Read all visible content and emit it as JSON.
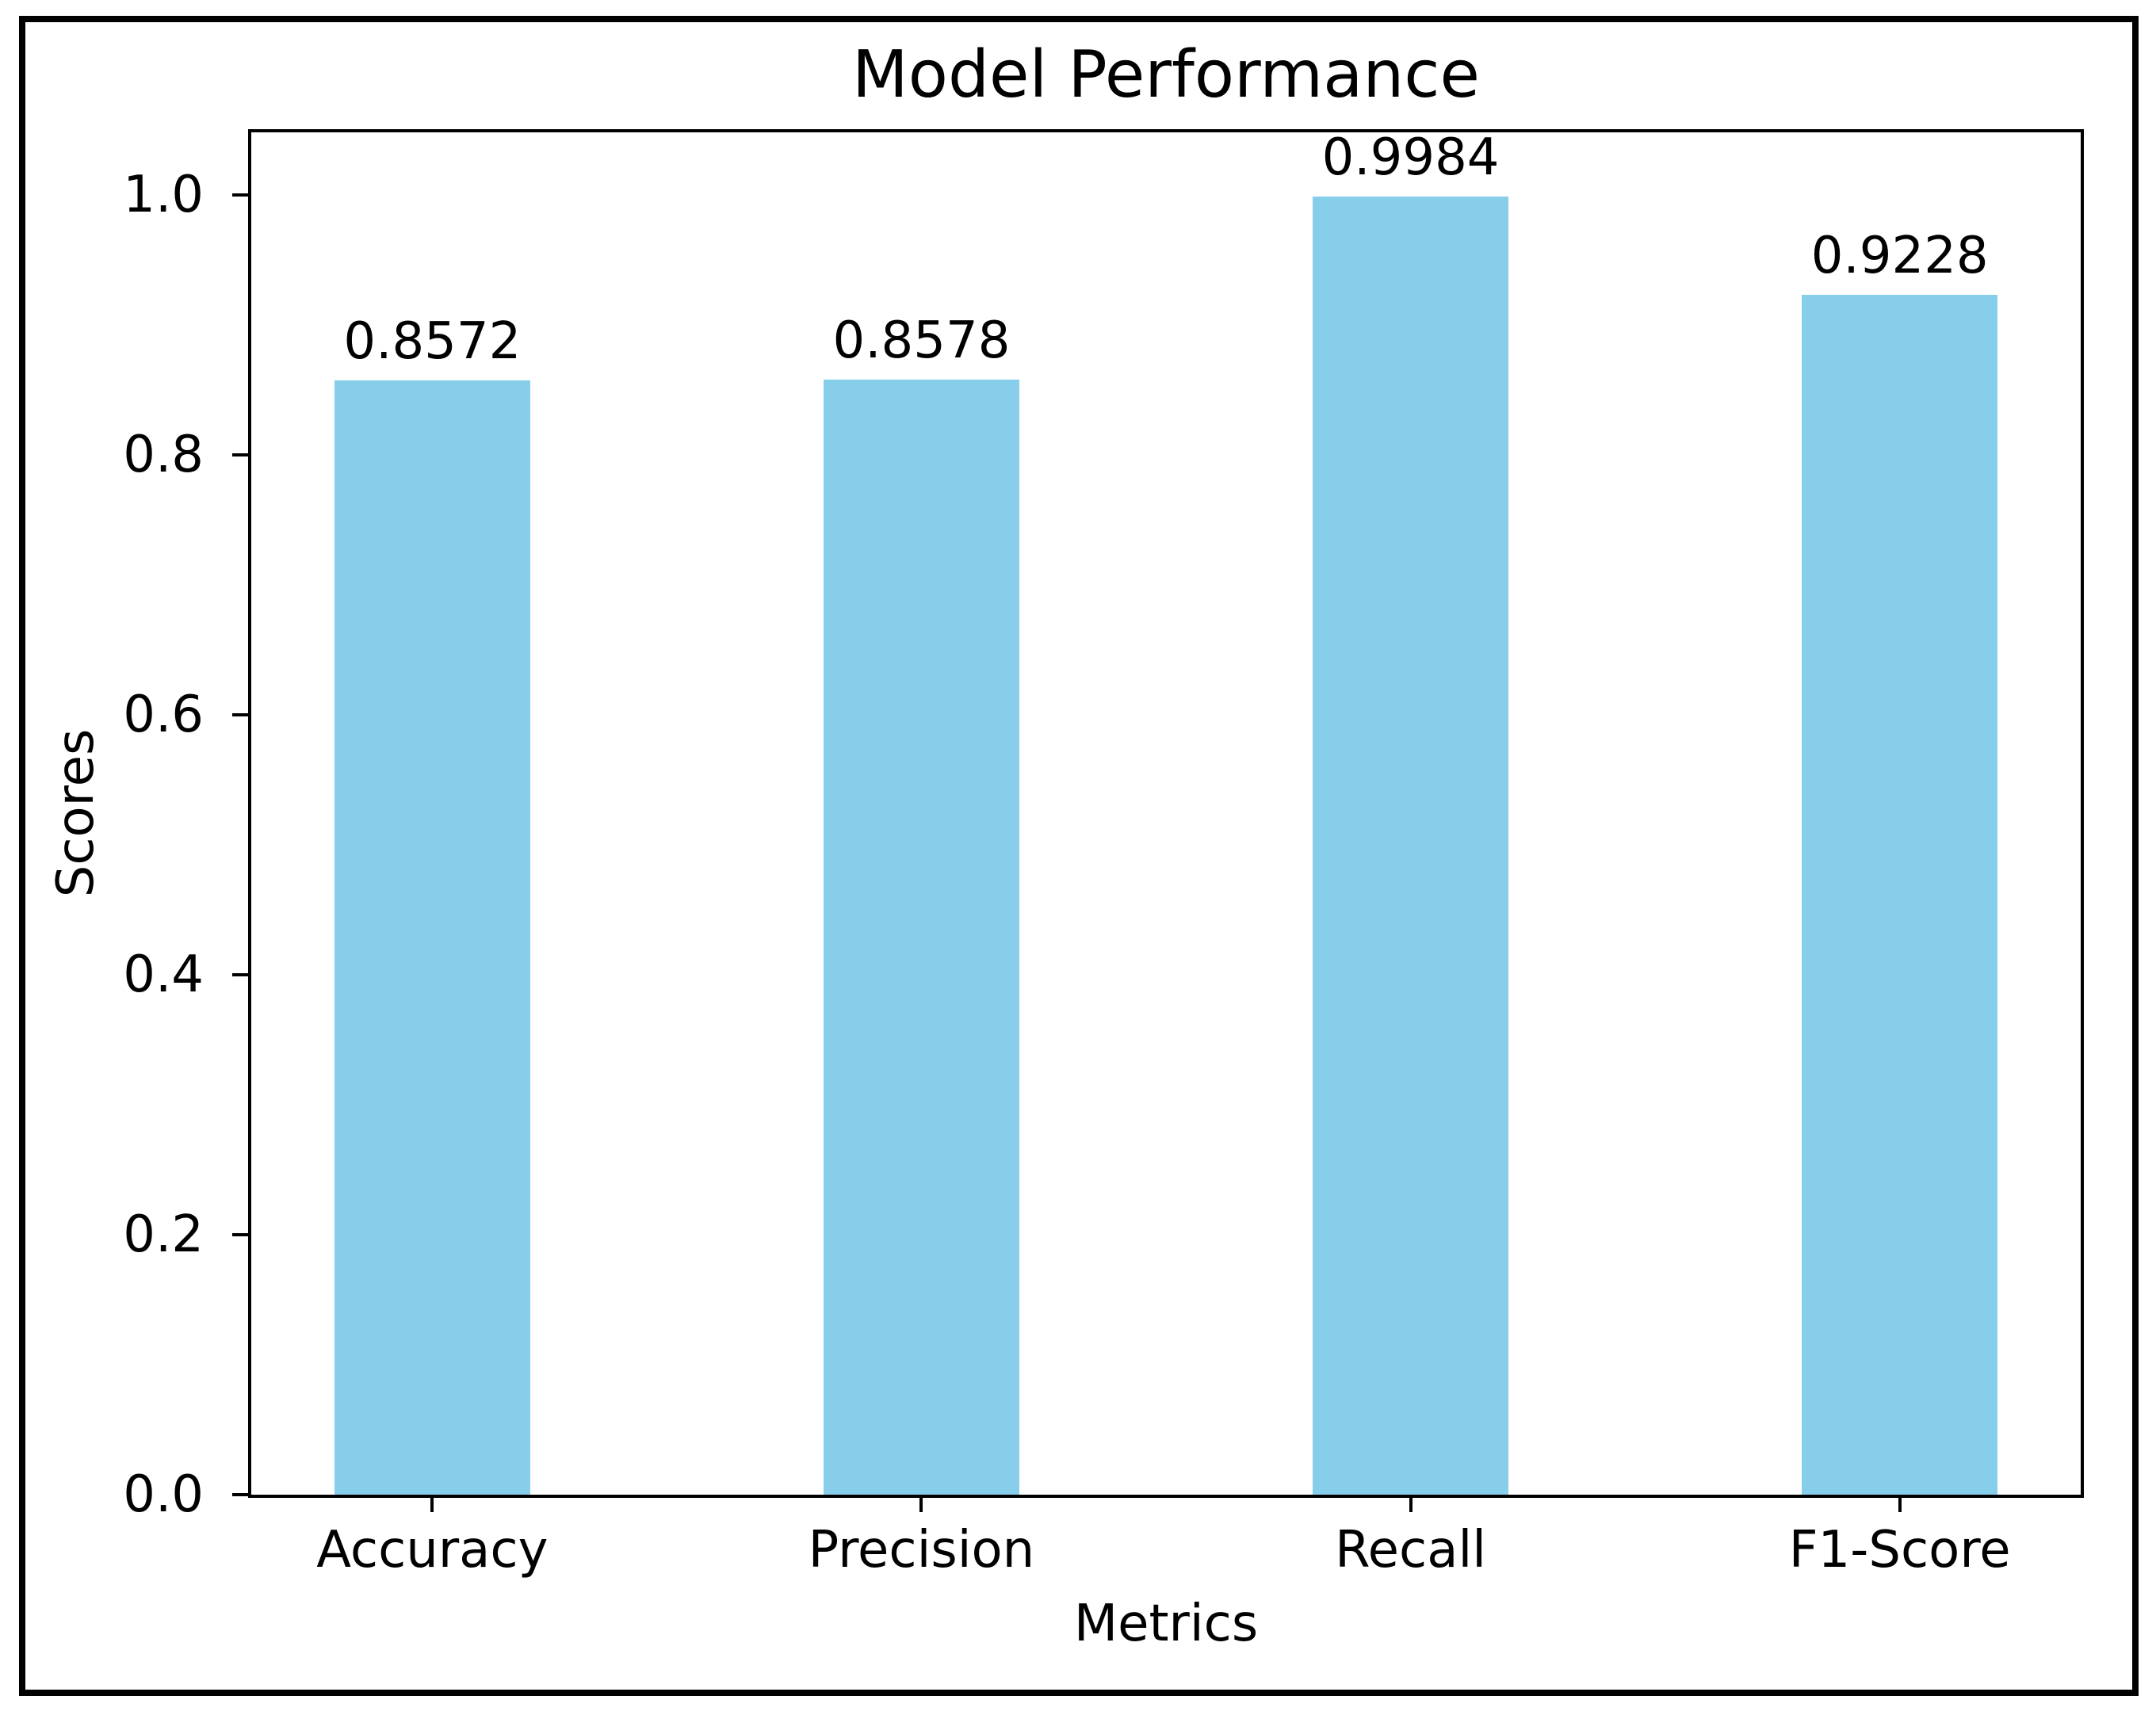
{
  "chart_data": {
    "type": "bar",
    "title": "Model Performance",
    "xlabel": "Metrics",
    "ylabel": "Scores",
    "categories": [
      "Accuracy",
      "Precision",
      "Recall",
      "F1-Score"
    ],
    "values": [
      0.8572,
      0.8578,
      0.9984,
      0.9228
    ],
    "value_labels": [
      "0.8572",
      "0.8578",
      "0.9984",
      "0.9228"
    ],
    "yticks": [
      0.0,
      0.2,
      0.4,
      0.6,
      0.8,
      1.0
    ],
    "ytick_labels": [
      "0.0",
      "0.2",
      "0.4",
      "0.6",
      "0.8",
      "1.0"
    ],
    "ylim": [
      0,
      1.048
    ],
    "xlim": [
      -0.37,
      3.37
    ],
    "bar_width": 0.4,
    "bar_color": "#87CEEB",
    "axis_color": "#000000",
    "text_color": "#000000",
    "background_color": "#ffffff",
    "grid": false,
    "legend": null
  }
}
